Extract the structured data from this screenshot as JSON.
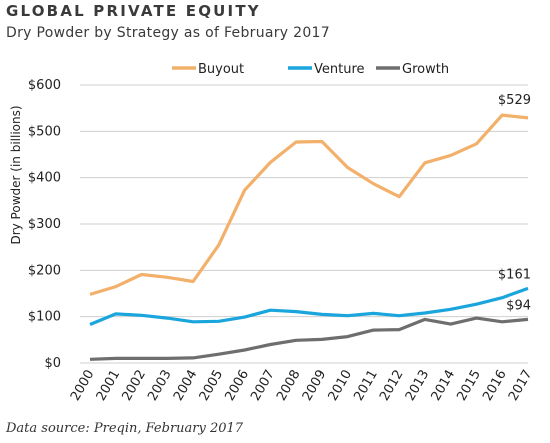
{
  "header": {
    "title": "GLOBAL PRIVATE EQUITY",
    "subtitle": "Dry Powder by Strategy as of February 2017"
  },
  "footer": {
    "source": "Data source: Preqin, February 2017"
  },
  "chart_data": {
    "type": "line",
    "title": "GLOBAL PRIVATE EQUITY",
    "subtitle": "Dry Powder by Strategy as of February 2017",
    "xlabel": "",
    "ylabel": "Dry Powder (in billions)",
    "categories": [
      "2000",
      "2001",
      "2002",
      "2003",
      "2004",
      "2005",
      "2006",
      "2007",
      "2008",
      "2009",
      "2010",
      "2011",
      "2012",
      "2013",
      "2014",
      "2015",
      "2016",
      "2017"
    ],
    "ylim": [
      0,
      600
    ],
    "yticks": [
      0,
      100,
      200,
      300,
      400,
      500,
      600
    ],
    "ytick_labels": [
      "$0",
      "$100",
      "$200",
      "$300",
      "$400",
      "$500",
      "$600"
    ],
    "grid": "horizontal",
    "legend_position": "top",
    "series": [
      {
        "name": "Buyout",
        "color": "#F2B06A",
        "values": [
          148,
          165,
          191,
          185,
          176,
          255,
          373,
          433,
          477,
          478,
          422,
          387,
          359,
          432,
          448,
          473,
          535,
          529
        ]
      },
      {
        "name": "Venture",
        "color": "#1AA5DD",
        "values": [
          83,
          106,
          103,
          97,
          89,
          90,
          99,
          114,
          111,
          105,
          102,
          107,
          102,
          108,
          116,
          127,
          141,
          161
        ]
      },
      {
        "name": "Growth",
        "color": "#6E6E6E",
        "values": [
          8,
          10,
          10,
          10,
          11,
          19,
          28,
          40,
          49,
          51,
          57,
          71,
          72,
          94,
          84,
          97,
          89,
          94
        ]
      }
    ],
    "annotations": [
      {
        "series": 0,
        "text": "$529"
      },
      {
        "series": 1,
        "text": "$161"
      },
      {
        "series": 2,
        "text": "$94"
      }
    ]
  }
}
